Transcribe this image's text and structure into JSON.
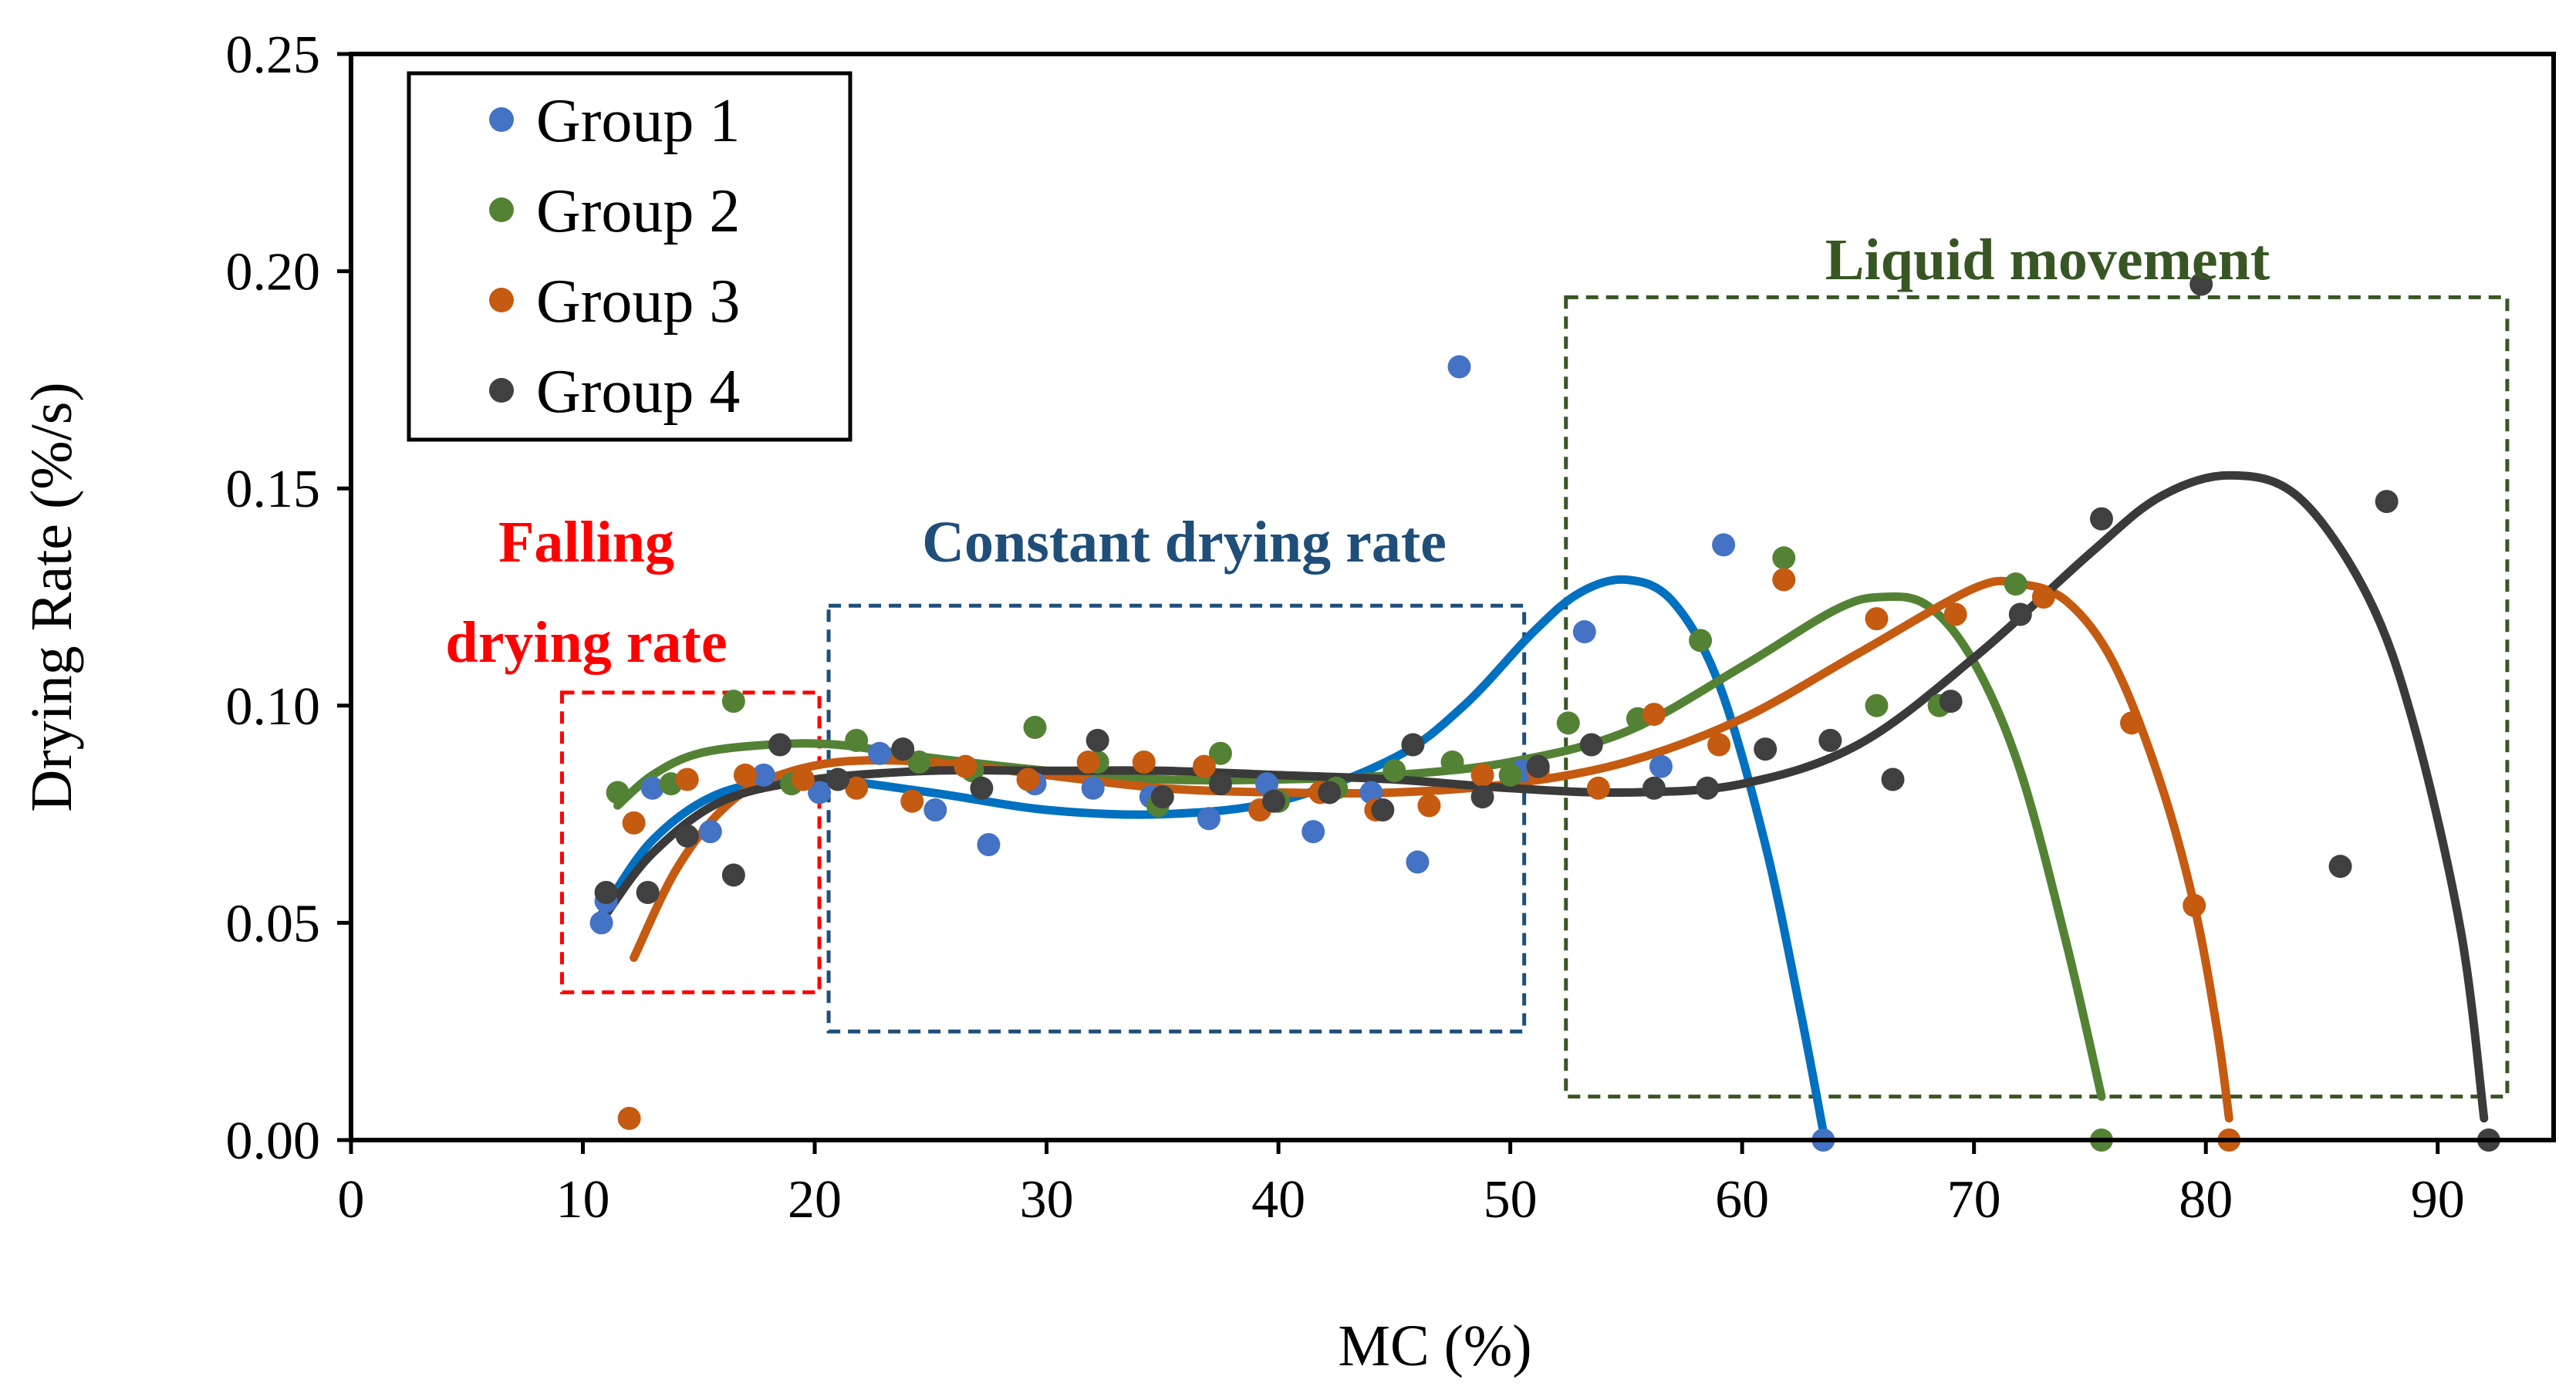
{
  "chart_data": {
    "type": "scatter",
    "title": "",
    "xlabel": "MC (%)",
    "ylabel": "Drying Rate (%/s)",
    "xlim": [
      0,
      95
    ],
    "ylim": [
      0,
      0.25
    ],
    "x_ticks": [
      0,
      10,
      20,
      30,
      40,
      50,
      60,
      70,
      80,
      90
    ],
    "y_ticks": [
      "0.00",
      "0.05",
      "0.10",
      "0.15",
      "0.20",
      "0.25"
    ],
    "grid": false,
    "legend_position": "top-left",
    "series": [
      {
        "name": "Group 1",
        "color": "#4472C4",
        "fit_color": "#0070C0",
        "points": [
          [
            10.8,
            0.05
          ],
          [
            11.0,
            0.055
          ],
          [
            13.0,
            0.081
          ],
          [
            15.5,
            0.071
          ],
          [
            17.8,
            0.084
          ],
          [
            20.2,
            0.08
          ],
          [
            22.8,
            0.089
          ],
          [
            25.2,
            0.076
          ],
          [
            27.5,
            0.068
          ],
          [
            29.5,
            0.082
          ],
          [
            32.0,
            0.081
          ],
          [
            34.5,
            0.079
          ],
          [
            37.0,
            0.074
          ],
          [
            39.5,
            0.082
          ],
          [
            41.5,
            0.071
          ],
          [
            44.0,
            0.08
          ],
          [
            46.0,
            0.064
          ],
          [
            47.8,
            0.178
          ],
          [
            50.5,
            0.085
          ],
          [
            53.2,
            0.117
          ],
          [
            56.5,
            0.086
          ],
          [
            59.2,
            0.137
          ],
          [
            63.5,
            0.0
          ]
        ],
        "fit": [
          [
            10.8,
            0.052
          ],
          [
            13,
            0.069
          ],
          [
            16,
            0.08
          ],
          [
            20,
            0.083
          ],
          [
            25,
            0.08
          ],
          [
            30,
            0.076
          ],
          [
            35,
            0.075
          ],
          [
            40,
            0.078
          ],
          [
            45,
            0.088
          ],
          [
            48,
            0.1
          ],
          [
            51,
            0.117
          ],
          [
            53,
            0.126
          ],
          [
            55,
            0.129
          ],
          [
            57,
            0.124
          ],
          [
            59,
            0.105
          ],
          [
            61,
            0.068
          ],
          [
            62.5,
            0.03
          ],
          [
            63.5,
            0.002
          ]
        ]
      },
      {
        "name": "Group 2",
        "color": "#548235",
        "fit_color": "#548235",
        "points": [
          [
            11.5,
            0.08
          ],
          [
            13.8,
            0.082
          ],
          [
            16.5,
            0.101
          ],
          [
            19.0,
            0.082
          ],
          [
            21.8,
            0.092
          ],
          [
            24.5,
            0.087
          ],
          [
            26.8,
            0.085
          ],
          [
            29.5,
            0.095
          ],
          [
            32.2,
            0.087
          ],
          [
            34.8,
            0.077
          ],
          [
            37.5,
            0.089
          ],
          [
            40.0,
            0.078
          ],
          [
            42.5,
            0.081
          ],
          [
            45.0,
            0.085
          ],
          [
            47.5,
            0.087
          ],
          [
            50.0,
            0.084
          ],
          [
            52.5,
            0.096
          ],
          [
            55.5,
            0.097
          ],
          [
            58.2,
            0.115
          ],
          [
            61.8,
            0.134
          ],
          [
            65.8,
            0.1
          ],
          [
            68.5,
            0.1
          ],
          [
            71.8,
            0.128
          ],
          [
            75.5,
            0.0
          ]
        ],
        "fit": [
          [
            11.5,
            0.077
          ],
          [
            13,
            0.084
          ],
          [
            15,
            0.089
          ],
          [
            18,
            0.091
          ],
          [
            21,
            0.091
          ],
          [
            25,
            0.088
          ],
          [
            30,
            0.085
          ],
          [
            35,
            0.083
          ],
          [
            40,
            0.083
          ],
          [
            45,
            0.084
          ],
          [
            50,
            0.087
          ],
          [
            55,
            0.094
          ],
          [
            60,
            0.109
          ],
          [
            64,
            0.122
          ],
          [
            66,
            0.125
          ],
          [
            68,
            0.123
          ],
          [
            70,
            0.11
          ],
          [
            72,
            0.085
          ],
          [
            74,
            0.045
          ],
          [
            75.5,
            0.01
          ]
        ]
      },
      {
        "name": "Group 3",
        "color": "#C55A11",
        "fit_color": "#C55A11",
        "points": [
          [
            12.0,
            0.005
          ],
          [
            12.2,
            0.073
          ],
          [
            14.5,
            0.083
          ],
          [
            17.0,
            0.084
          ],
          [
            19.5,
            0.083
          ],
          [
            21.8,
            0.081
          ],
          [
            24.2,
            0.078
          ],
          [
            26.5,
            0.086
          ],
          [
            29.2,
            0.083
          ],
          [
            31.8,
            0.087
          ],
          [
            34.2,
            0.087
          ],
          [
            36.8,
            0.086
          ],
          [
            39.2,
            0.076
          ],
          [
            41.8,
            0.08
          ],
          [
            44.2,
            0.076
          ],
          [
            46.5,
            0.077
          ],
          [
            48.8,
            0.084
          ],
          [
            51.2,
            0.085
          ],
          [
            53.8,
            0.081
          ],
          [
            56.2,
            0.098
          ],
          [
            59.0,
            0.091
          ],
          [
            61.8,
            0.129
          ],
          [
            65.8,
            0.12
          ],
          [
            69.2,
            0.121
          ],
          [
            73.0,
            0.125
          ],
          [
            76.8,
            0.096
          ],
          [
            79.5,
            0.054
          ],
          [
            81.0,
            0.0
          ]
        ],
        "fit": [
          [
            12.2,
            0.042
          ],
          [
            14,
            0.062
          ],
          [
            16,
            0.076
          ],
          [
            18,
            0.083
          ],
          [
            21,
            0.087
          ],
          [
            25,
            0.087
          ],
          [
            30,
            0.084
          ],
          [
            35,
            0.081
          ],
          [
            40,
            0.08
          ],
          [
            45,
            0.08
          ],
          [
            50,
            0.082
          ],
          [
            55,
            0.087
          ],
          [
            60,
            0.097
          ],
          [
            65,
            0.112
          ],
          [
            70,
            0.127
          ],
          [
            72,
            0.128
          ],
          [
            74,
            0.124
          ],
          [
            76,
            0.11
          ],
          [
            78,
            0.083
          ],
          [
            79.5,
            0.054
          ],
          [
            80.5,
            0.025
          ],
          [
            81,
            0.005
          ]
        ]
      },
      {
        "name": "Group 4",
        "color": "#404040",
        "fit_color": "#3A3A3A",
        "points": [
          [
            11.0,
            0.057
          ],
          [
            12.8,
            0.057
          ],
          [
            14.5,
            0.07
          ],
          [
            16.5,
            0.061
          ],
          [
            18.5,
            0.091
          ],
          [
            21.0,
            0.083
          ],
          [
            23.8,
            0.09
          ],
          [
            27.2,
            0.081
          ],
          [
            32.2,
            0.092
          ],
          [
            35.0,
            0.079
          ],
          [
            37.5,
            0.082
          ],
          [
            39.8,
            0.078
          ],
          [
            42.2,
            0.08
          ],
          [
            44.5,
            0.076
          ],
          [
            45.8,
            0.091
          ],
          [
            48.8,
            0.079
          ],
          [
            51.2,
            0.086
          ],
          [
            53.5,
            0.091
          ],
          [
            56.2,
            0.081
          ],
          [
            58.5,
            0.081
          ],
          [
            61.0,
            0.09
          ],
          [
            63.8,
            0.092
          ],
          [
            66.5,
            0.083
          ],
          [
            69.0,
            0.101
          ],
          [
            72.0,
            0.121
          ],
          [
            75.5,
            0.143
          ],
          [
            79.8,
            0.197
          ],
          [
            85.8,
            0.063
          ],
          [
            87.8,
            0.147
          ],
          [
            92.2,
            0.0
          ]
        ],
        "fit": [
          [
            11,
            0.052
          ],
          [
            13,
            0.066
          ],
          [
            16,
            0.078
          ],
          [
            20,
            0.083
          ],
          [
            25,
            0.085
          ],
          [
            30,
            0.085
          ],
          [
            35,
            0.085
          ],
          [
            40,
            0.084
          ],
          [
            45,
            0.083
          ],
          [
            50,
            0.081
          ],
          [
            55,
            0.08
          ],
          [
            60,
            0.082
          ],
          [
            65,
            0.091
          ],
          [
            70,
            0.111
          ],
          [
            75,
            0.135
          ],
          [
            78,
            0.148
          ],
          [
            81,
            0.153
          ],
          [
            84,
            0.148
          ],
          [
            87,
            0.125
          ],
          [
            89,
            0.095
          ],
          [
            91,
            0.048
          ],
          [
            92,
            0.005
          ]
        ]
      }
    ],
    "annotations": [
      {
        "text": "Falling",
        "color": "#FF0000"
      },
      {
        "text": "drying rate",
        "color": "#FF0000"
      },
      {
        "text": "Constant drying rate",
        "color": "#1F4E79"
      },
      {
        "text": "Liquid movement",
        "color": "#375623"
      }
    ],
    "regions": [
      {
        "name": "falling-region",
        "x": [
          9.1,
          20.2
        ],
        "y": [
          0.034,
          0.103
        ],
        "color": "#FF0000"
      },
      {
        "name": "constant-region",
        "x": [
          20.6,
          50.6
        ],
        "y": [
          0.025,
          0.123
        ],
        "color": "#1F4E79"
      },
      {
        "name": "liquid-region",
        "x": [
          52.4,
          93.0
        ],
        "y": [
          0.01,
          0.194
        ],
        "color": "#375623"
      }
    ]
  }
}
